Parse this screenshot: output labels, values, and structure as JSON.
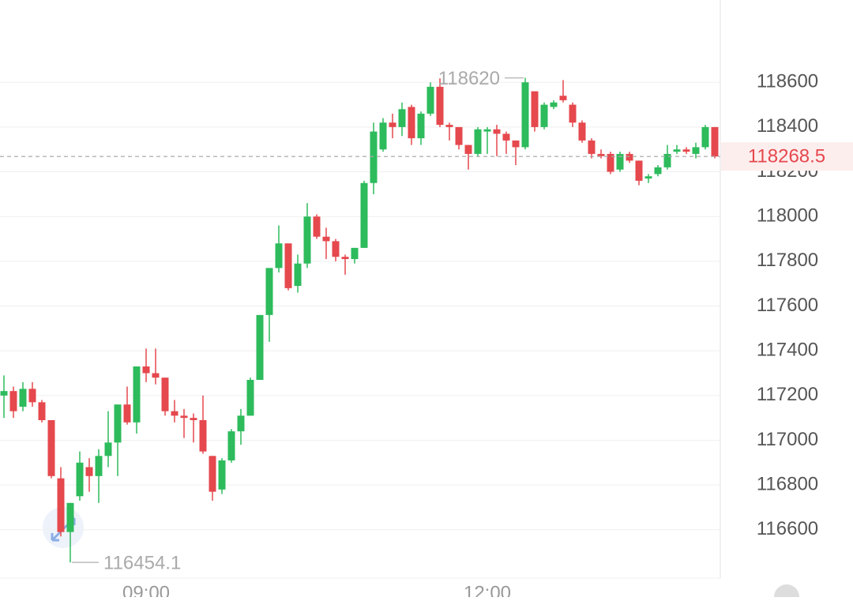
{
  "chart_data": {
    "type": "candlestick",
    "categories": [
      null,
      null,
      null,
      null,
      null,
      null,
      null,
      null,
      null,
      null,
      null,
      null,
      null,
      null,
      null,
      "09:00",
      null,
      null,
      null,
      null,
      null,
      null,
      null,
      null,
      null,
      null,
      null,
      null,
      null,
      null,
      null,
      null,
      null,
      null,
      null,
      null,
      null,
      null,
      null,
      null,
      null,
      null,
      null,
      null,
      null,
      null,
      null,
      null,
      null,
      null,
      null,
      "12:00",
      null,
      null,
      null,
      null,
      null,
      null,
      null,
      null,
      null,
      null,
      null,
      null,
      null,
      null,
      null,
      null,
      null,
      null,
      null,
      null,
      null,
      null,
      null,
      null
    ],
    "open": [
      117200,
      117220,
      117150,
      117230,
      117170,
      117090,
      116830,
      116590,
      116750,
      116880,
      116840,
      116930,
      116990,
      117160,
      117080,
      117330,
      117300,
      117280,
      117130,
      117110,
      117100,
      117090,
      116930,
      116780,
      116910,
      117040,
      117110,
      117270,
      117560,
      117770,
      117880,
      117690,
      117790,
      118000,
      117910,
      117890,
      117820,
      117810,
      117860,
      118150,
      118300,
      118420,
      118400,
      118490,
      118350,
      118460,
      118580,
      118410,
      118400,
      118320,
      118280,
      118380,
      118390,
      118370,
      118340,
      118310,
      118560,
      118400,
      118490,
      118540,
      118500,
      118420,
      118340,
      118280,
      118280,
      118210,
      118280,
      118250,
      118170,
      118190,
      118220,
      118290,
      118300,
      118280,
      118310,
      118400
    ],
    "high": [
      117290,
      117240,
      117260,
      117260,
      117180,
      117090,
      116880,
      116720,
      116950,
      116920,
      116960,
      117130,
      117160,
      117240,
      117330,
      117410,
      117410,
      117280,
      117180,
      117140,
      117120,
      117200,
      116930,
      116920,
      117050,
      117140,
      117280,
      117560,
      117770,
      117960,
      117880,
      117830,
      118060,
      118010,
      117950,
      117900,
      117830,
      117860,
      118160,
      118420,
      118440,
      118460,
      118510,
      118500,
      118470,
      118600,
      118617.9,
      118420,
      118400,
      118320,
      118400,
      118400,
      118410,
      118380,
      118340,
      118620,
      118560,
      118510,
      118520,
      118610,
      118510,
      118430,
      118350,
      118300,
      118290,
      118290,
      118290,
      118250,
      118190,
      118230,
      118320,
      118320,
      118310,
      118330,
      118410,
      118400
    ],
    "low": [
      117100,
      117100,
      117130,
      117150,
      117080,
      116830,
      116570,
      116454.1,
      116730,
      116770,
      116720,
      116880,
      116840,
      117070,
      117030,
      117260,
      117250,
      117110,
      117080,
      117010,
      116990,
      116940,
      116730,
      116760,
      116900,
      116980,
      117110,
      117270,
      117440,
      117750,
      117670,
      117660,
      117770,
      117900,
      117810,
      117800,
      117740,
      117790,
      117860,
      118100,
      118290,
      118350,
      118360,
      118320,
      118320,
      118450,
      118400,
      118340,
      118300,
      118210,
      118270,
      118280,
      118270,
      118280,
      118230,
      118300,
      118380,
      118390,
      118480,
      118510,
      118400,
      118330,
      118260,
      118260,
      118190,
      118200,
      118240,
      118140,
      118150,
      118180,
      118210,
      118280,
      118280,
      118260,
      118300,
      118260
    ],
    "close": [
      117220,
      117130,
      117230,
      117170,
      117090,
      116840,
      116590,
      116720,
      116900,
      116840,
      116930,
      116990,
      117160,
      117080,
      117330,
      117300,
      117280,
      117130,
      117110,
      117100,
      117090,
      116950,
      116770,
      116910,
      117040,
      117110,
      117270,
      117560,
      117770,
      117880,
      117680,
      117790,
      118000,
      117910,
      117890,
      117820,
      117810,
      117860,
      118150,
      118380,
      118420,
      118400,
      118480,
      118350,
      118460,
      118580,
      118410,
      118400,
      118320,
      118280,
      118390,
      118390,
      118370,
      118340,
      118310,
      118600,
      118400,
      118500,
      118510,
      118520,
      118420,
      118340,
      118280,
      118270,
      118200,
      118280,
      118250,
      118160,
      118180,
      118220,
      118280,
      118300,
      118290,
      118310,
      118400,
      118268.5
    ],
    "up_color": "#2dbb5c",
    "down_color": "#e5484d",
    "ylim": [
      116384,
      118968
    ],
    "yticks": [
      116600,
      116800,
      117000,
      117200,
      117400,
      117600,
      117800,
      118000,
      118200,
      118400,
      118600
    ],
    "grid": true
  }
}
